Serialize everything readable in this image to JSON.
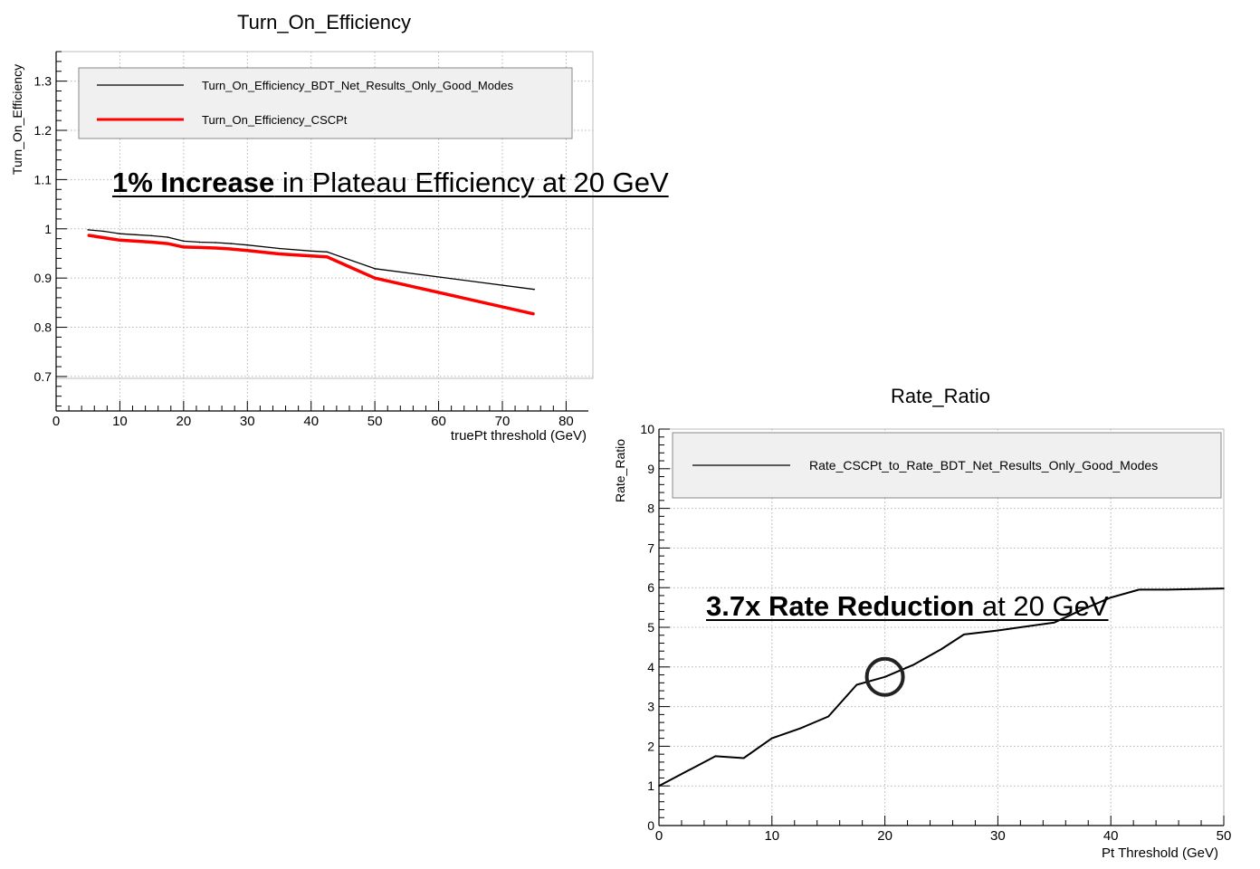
{
  "chart_data": [
    {
      "type": "line",
      "title": "Turn_On_Efficiency",
      "xlabel": "truePt threshold (GeV)",
      "ylabel": "Turn_On_Efficiency",
      "xlim": [
        0,
        82
      ],
      "ylim": [
        0.63,
        1.36
      ],
      "xticks": [
        0,
        10,
        20,
        30,
        40,
        50,
        60,
        70,
        80
      ],
      "yticks": [
        0.7,
        0.8,
        0.9,
        1,
        1.1,
        1.2,
        1.3
      ],
      "ytick_labels": [
        "0.7",
        "0.8",
        "0.9",
        "1",
        "1.1",
        "1.2",
        "1.3"
      ],
      "grid": true,
      "legend_position": "top",
      "series": [
        {
          "name": "Turn_On_Efficiency_BDT_Net_Results_Only_Good_Modes",
          "color": "#000000",
          "x": [
            5,
            7.5,
            10,
            12.5,
            15,
            17.5,
            20,
            22.5,
            25,
            27.5,
            30,
            35,
            40,
            42.5,
            50,
            75
          ],
          "y": [
            0.998,
            0.995,
            0.99,
            0.988,
            0.986,
            0.983,
            0.975,
            0.973,
            0.972,
            0.97,
            0.967,
            0.96,
            0.955,
            0.953,
            0.919,
            0.877
          ]
        },
        {
          "name": "Turn_On_Efficiency_CSCPt",
          "color": "#ff0000",
          "x": [
            5,
            7.5,
            10,
            12.5,
            15,
            17.5,
            20,
            22.5,
            25,
            27.5,
            30,
            35,
            40,
            42.5,
            50,
            75
          ],
          "y": [
            0.987,
            0.982,
            0.977,
            0.975,
            0.973,
            0.97,
            0.963,
            0.962,
            0.961,
            0.959,
            0.956,
            0.949,
            0.945,
            0.943,
            0.9,
            0.827
          ]
        }
      ],
      "annotation": {
        "bold": "1% Increase",
        "rest": " in Plateau Efficiency at 20 GeV"
      }
    },
    {
      "type": "line",
      "title": "Rate_Ratio",
      "xlabel": "Pt Threshold (GeV)",
      "ylabel": "Rate_Ratio",
      "xlim": [
        0,
        50
      ],
      "ylim": [
        0,
        10
      ],
      "xticks": [
        0,
        10,
        20,
        30,
        40,
        50
      ],
      "yticks": [
        0,
        1,
        2,
        3,
        4,
        5,
        6,
        7,
        8,
        9,
        10
      ],
      "grid": true,
      "legend_position": "top",
      "series": [
        {
          "name": "Rate_CSCPt_to_Rate_BDT_Net_Results_Only_Good_Modes",
          "color": "#000000",
          "x": [
            0,
            5,
            7.5,
            10,
            12.5,
            15,
            17.5,
            20,
            22.5,
            25,
            27,
            30,
            35,
            37.5,
            40,
            42.5,
            45,
            50
          ],
          "y": [
            1.0,
            1.75,
            1.7,
            2.2,
            2.45,
            2.75,
            3.55,
            3.75,
            4.05,
            4.45,
            4.82,
            4.92,
            5.12,
            5.45,
            5.75,
            5.95,
            5.95,
            5.98
          ]
        }
      ],
      "highlight": {
        "x": 20,
        "y": 3.75
      },
      "annotation": {
        "bold": "3.7x Rate Reduction",
        "rest": " at 20 GeV"
      }
    }
  ]
}
